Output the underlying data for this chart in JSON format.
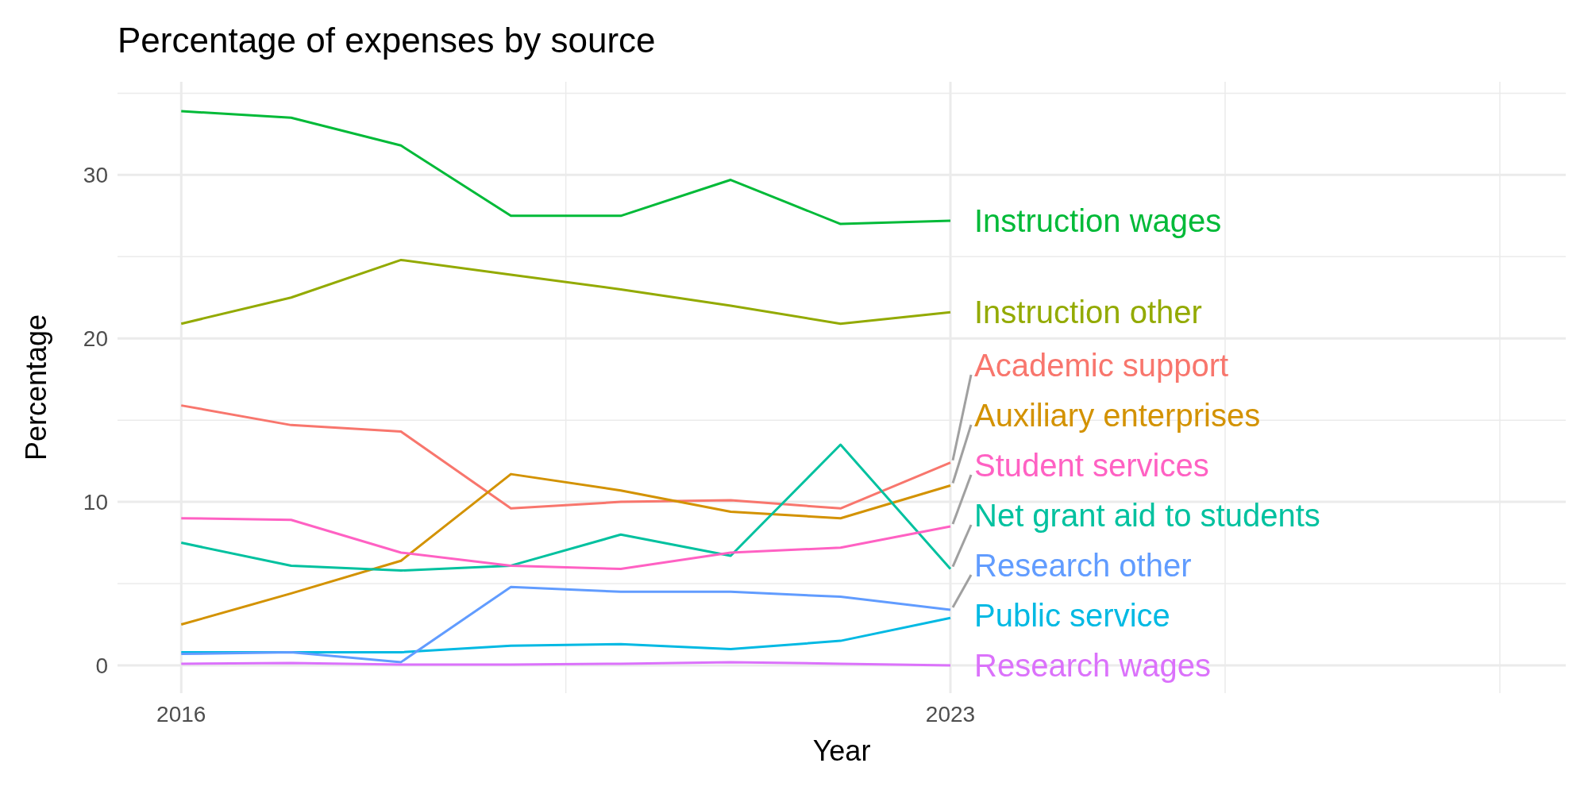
{
  "chart_data": {
    "type": "line",
    "title": "Percentage of expenses by source",
    "xlabel": "Year",
    "ylabel": "Percentage",
    "x": [
      2016,
      2017,
      2018,
      2019,
      2020,
      2021,
      2022,
      2023
    ],
    "xlim": [
      2015.42,
      2028.6
    ],
    "xticks": [
      2016,
      {
        "value": 2019.5,
        "label": null
      },
      2023,
      {
        "value": 2025.5,
        "label": null
      },
      {
        "value": 2028,
        "label": null
      }
    ],
    "ylim": [
      -1.7,
      35.7
    ],
    "yticks": [
      0,
      {
        "value": 5,
        "label": null
      },
      10,
      {
        "value": 15,
        "label": null
      },
      20,
      {
        "value": 25,
        "label": null
      },
      30,
      {
        "value": 35,
        "label": null
      }
    ],
    "grid": true,
    "legend": false,
    "marker": "none",
    "line_style": "solid",
    "series": [
      {
        "name": "Academic support",
        "color": "#f8766d",
        "values": [
          15.9,
          14.7,
          14.3,
          9.6,
          10.0,
          10.1,
          9.6,
          12.4
        ]
      },
      {
        "name": "Auxiliary enterprises",
        "color": "#d39200",
        "values": [
          2.5,
          4.4,
          6.4,
          11.7,
          10.7,
          9.4,
          9.0,
          11.0
        ]
      },
      {
        "name": "Instruction other",
        "color": "#93aa00",
        "values": [
          20.9,
          22.5,
          24.8,
          23.9,
          23.0,
          22.0,
          20.9,
          21.6
        ]
      },
      {
        "name": "Instruction wages",
        "color": "#00ba38",
        "values": [
          33.9,
          33.5,
          31.8,
          27.5,
          27.5,
          29.7,
          27.0,
          27.2
        ]
      },
      {
        "name": "Net grant aid to students",
        "color": "#00c19f",
        "values": [
          7.5,
          6.1,
          5.8,
          6.1,
          8.0,
          6.7,
          13.5,
          5.9
        ]
      },
      {
        "name": "Public service",
        "color": "#00b9e3",
        "values": [
          0.8,
          0.8,
          0.8,
          1.2,
          1.3,
          1.0,
          1.5,
          2.9
        ]
      },
      {
        "name": "Research other",
        "color": "#619cff",
        "values": [
          0.7,
          0.8,
          0.2,
          4.8,
          4.5,
          4.5,
          4.2,
          3.4
        ]
      },
      {
        "name": "Research wages",
        "color": "#db72fb",
        "values": [
          0.1,
          0.15,
          0.05,
          0.05,
          0.1,
          0.2,
          0.1,
          0.0
        ]
      },
      {
        "name": "Student services",
        "color": "#ff61c3",
        "values": [
          9.0,
          8.9,
          6.9,
          6.1,
          5.9,
          6.9,
          7.2,
          8.5
        ]
      }
    ]
  }
}
